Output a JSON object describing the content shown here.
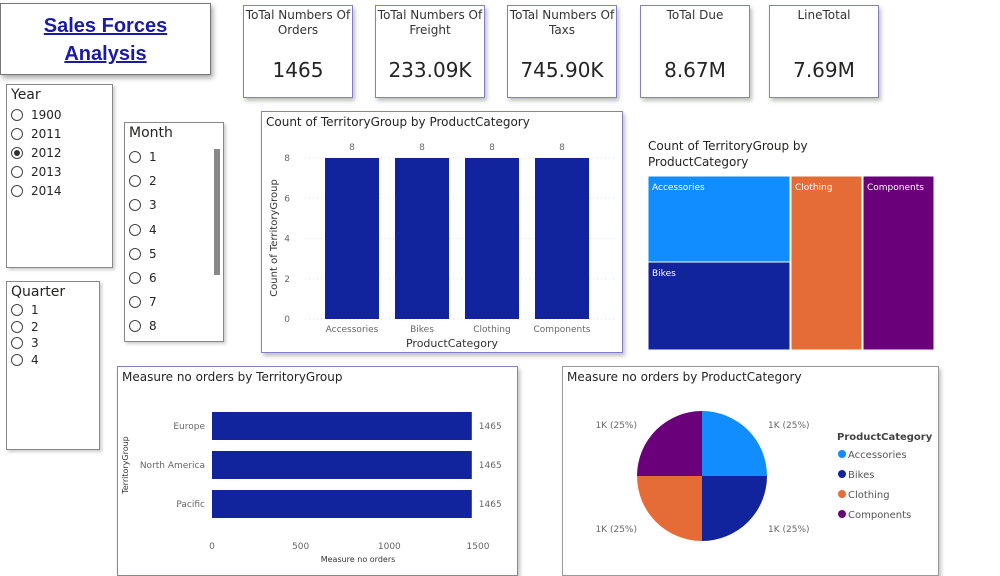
{
  "title": {
    "line1": "Sales  Forces",
    "line2": "Analysis"
  },
  "kpis": [
    {
      "label": "ToTal Numbers Of Orders",
      "value": "1465"
    },
    {
      "label": "ToTal Numbers Of Freight",
      "value": "233.09K"
    },
    {
      "label": "ToTal Numbers Of Taxs",
      "value": "745.90K"
    },
    {
      "label": "ToTal Due",
      "value": "8.67M"
    },
    {
      "label": "LineTotal",
      "value": "7.69M"
    }
  ],
  "year_slicer": {
    "title": "Year",
    "options": [
      "1900",
      "2011",
      "2012",
      "2013",
      "2014"
    ],
    "selected": "2012"
  },
  "month_slicer": {
    "title": "Month",
    "options": [
      "1",
      "2",
      "3",
      "4",
      "5",
      "6",
      "7",
      "8"
    ]
  },
  "quarter_slicer": {
    "title": "Quarter",
    "options": [
      "1",
      "2",
      "3",
      "4"
    ]
  },
  "colors": {
    "accent": "#12239e",
    "Accessories": "#118dff",
    "Bikes": "#12239e",
    "Clothing": "#e66c37",
    "Components": "#6b007b"
  },
  "chart_data": [
    {
      "type": "bar",
      "title": "Count of TerritoryGroup by ProductCategory",
      "xlabel": "ProductCategory",
      "ylabel": "Count of TerritoryGroup",
      "categories": [
        "Accessories",
        "Bikes",
        "Clothing",
        "Components"
      ],
      "values": [
        8,
        8,
        8,
        8
      ],
      "ylim": [
        0,
        8
      ],
      "yticks": [
        0,
        2,
        4,
        6,
        8
      ],
      "grid": true
    },
    {
      "type": "treemap",
      "title": "Count of TerritoryGroup by ProductCategory",
      "categories": [
        "Accessories",
        "Bikes",
        "Clothing",
        "Components"
      ],
      "values": [
        8,
        8,
        8,
        8
      ]
    },
    {
      "type": "bar",
      "orientation": "horizontal",
      "title": "Measure no orders by TerritoryGroup",
      "xlabel": "Measure no orders",
      "ylabel": "TerritoryGroup",
      "categories": [
        "Europe",
        "North America",
        "Pacific"
      ],
      "values": [
        1465,
        1465,
        1465
      ],
      "xlim": [
        0,
        1500
      ],
      "xticks": [
        0,
        500,
        1000,
        1500
      ]
    },
    {
      "type": "pie",
      "title": "Measure no orders by ProductCategory",
      "legend_title": "ProductCategory",
      "legend": "right",
      "categories": [
        "Accessories",
        "Bikes",
        "Clothing",
        "Components"
      ],
      "values": [
        1465,
        1465,
        1465,
        1465
      ],
      "labels": [
        "1K (25%)",
        "1K (25%)",
        "1K (25%)",
        "1K (25%)"
      ]
    }
  ]
}
